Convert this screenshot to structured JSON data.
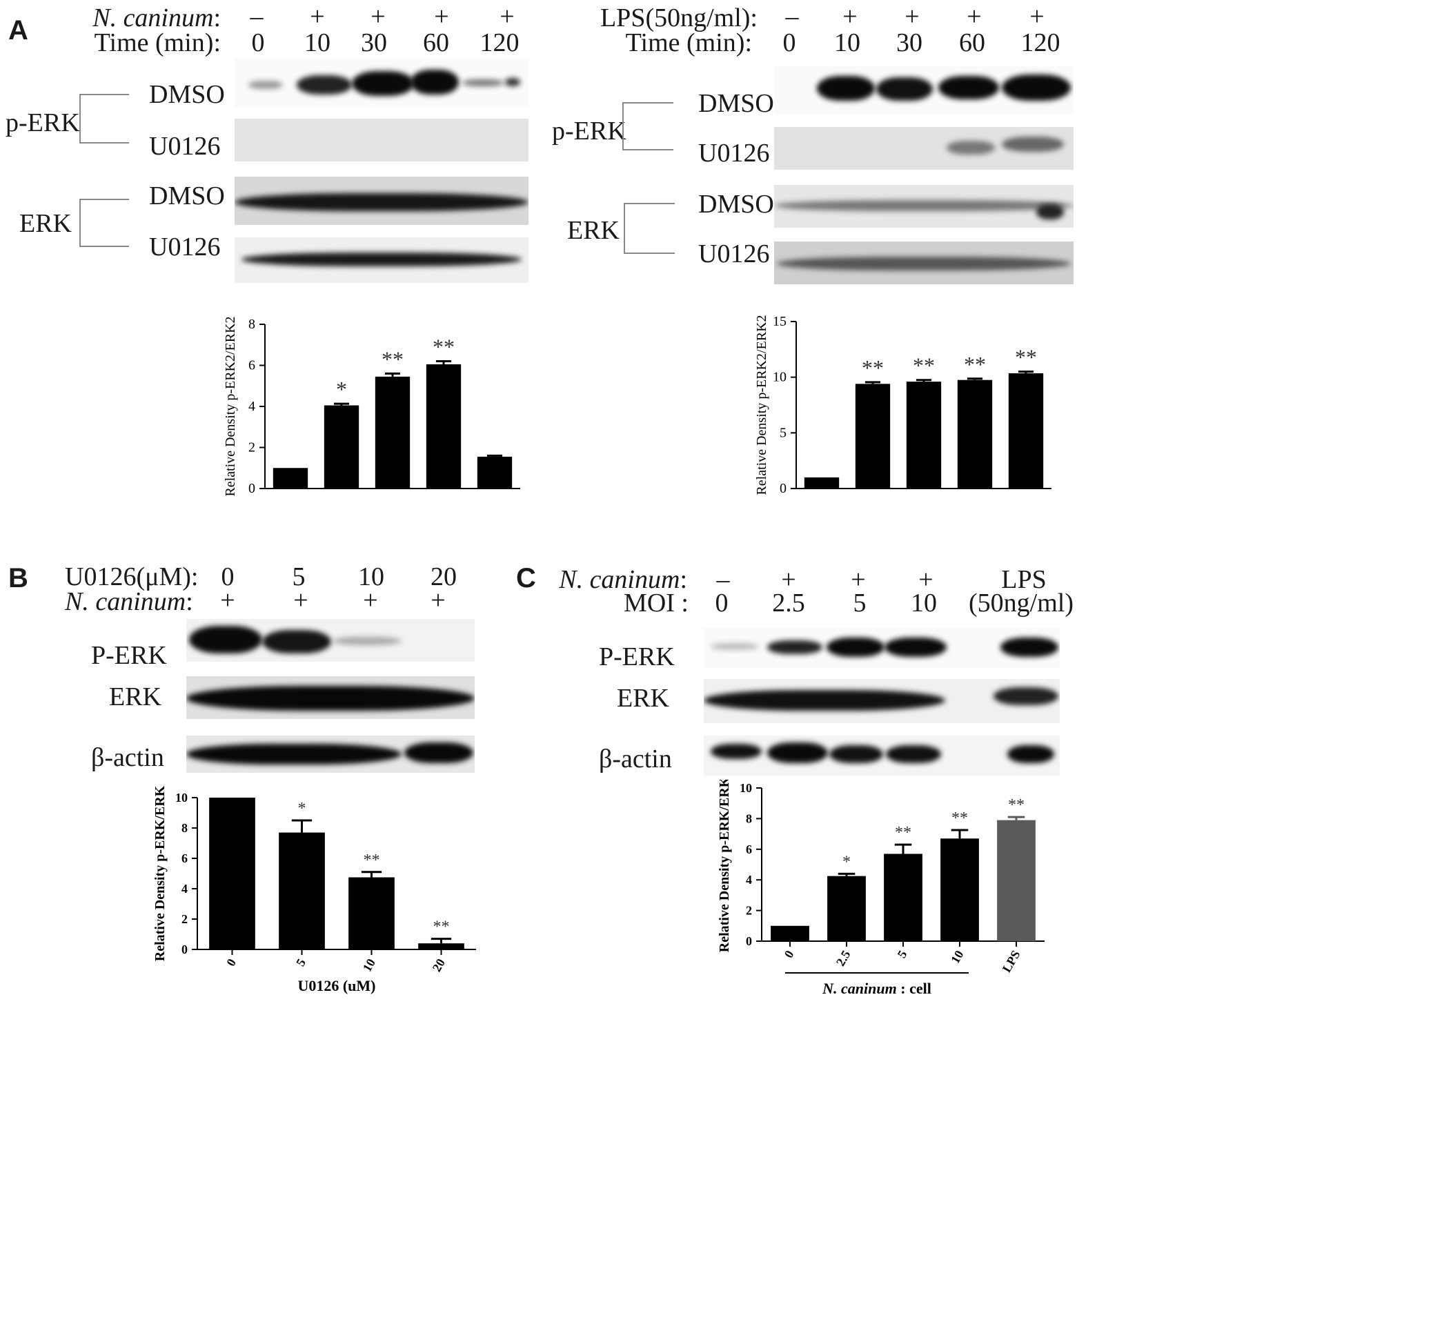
{
  "panels": {
    "A": {
      "letter": "A",
      "left": {
        "treatment_label": "N. caninum",
        "treatment_colon": ":",
        "time_label": "Time (min):",
        "signs": [
          "–",
          "+",
          "+",
          "+",
          "+"
        ],
        "times": [
          "0",
          "10",
          "30",
          "60",
          "120"
        ],
        "group_perk": "p-ERK",
        "group_erk": "ERK",
        "rows": [
          "DMSO",
          "U0126",
          "DMSO",
          "U0126"
        ]
      },
      "right": {
        "treatment_label": "LPS(50ng/ml):",
        "time_label": "Time (min):",
        "signs": [
          "–",
          "+",
          "+",
          "+",
          "+"
        ],
        "times": [
          "0",
          "10",
          "30",
          "60",
          "120"
        ],
        "group_perk": "p-ERK",
        "group_erk": "ERK",
        "rows": [
          "DMSO",
          "U0126",
          "DMSO",
          "U0126"
        ]
      }
    },
    "B": {
      "letter": "B",
      "dose_label": "U0126(μM):",
      "treatment_label": "N. caninum",
      "treatment_colon": ":",
      "doses": [
        "0",
        "5",
        "10",
        "20"
      ],
      "signs": [
        "+",
        "+",
        "+",
        "+"
      ],
      "rows": [
        "P-ERK",
        "ERK",
        "β-actin"
      ]
    },
    "C": {
      "letter": "C",
      "treatment_label": "N. caninum",
      "treatment_colon": ":",
      "moi_label": "MOI :",
      "signs": [
        "–",
        "+",
        "+",
        "+"
      ],
      "mois": [
        "0",
        "2.5",
        "5",
        "10"
      ],
      "lps_top": "LPS",
      "lps_bottom": "(50ng/ml)",
      "rows": [
        "P-ERK",
        "ERK",
        "β-actin"
      ]
    }
  },
  "chart_data": [
    {
      "id": "A-left",
      "type": "bar",
      "categories": [
        "0",
        "10",
        "30",
        "60",
        "120"
      ],
      "values": [
        1.0,
        4.05,
        5.45,
        6.05,
        1.55
      ],
      "errors": [
        0,
        0.08,
        0.15,
        0.15,
        0.05
      ],
      "significance": [
        "",
        "*",
        "**",
        "**",
        ""
      ],
      "ylabel": "Relative Density p-ERK2/ERK2",
      "ylim": [
        0,
        8
      ],
      "yticks": [
        0,
        2,
        4,
        6,
        8
      ],
      "show_xticks": false
    },
    {
      "id": "A-right",
      "type": "bar",
      "categories": [
        "0",
        "10",
        "30",
        "60",
        "120"
      ],
      "values": [
        1.0,
        9.4,
        9.6,
        9.75,
        10.35
      ],
      "errors": [
        0,
        0.15,
        0.15,
        0.12,
        0.15
      ],
      "significance": [
        "",
        "**",
        "**",
        "**",
        "**"
      ],
      "ylabel": "Relative Density p-ERK2/ERK2",
      "ylim": [
        0,
        15
      ],
      "yticks": [
        0,
        5,
        10,
        15
      ],
      "show_xticks": false
    },
    {
      "id": "B",
      "type": "bar",
      "categories": [
        "0",
        "5",
        "10",
        "20"
      ],
      "values": [
        10.0,
        7.7,
        4.75,
        0.4
      ],
      "errors": [
        0,
        0.8,
        0.35,
        0.3
      ],
      "significance": [
        "",
        "*",
        "**",
        "**"
      ],
      "ylabel": "Relative Density p-ERK/ERK",
      "xlabel": "U0126 (uM)",
      "ylim": [
        0,
        10
      ],
      "yticks": [
        0,
        2,
        4,
        6,
        8,
        10
      ],
      "show_xticks": true
    },
    {
      "id": "C",
      "type": "bar",
      "categories": [
        "0",
        "2.5",
        "5",
        "10",
        "LPS"
      ],
      "values": [
        1.0,
        4.25,
        5.7,
        6.7,
        7.9
      ],
      "errors": [
        0,
        0.15,
        0.6,
        0.55,
        0.2
      ],
      "significance": [
        "",
        "*",
        "**",
        "**",
        "**"
      ],
      "colors": [
        "#000000",
        "#000000",
        "#000000",
        "#000000",
        "#5a5a5a"
      ],
      "ylabel": "Relative Density p-ERK/ERK",
      "xlabel_italic": "N. caninum",
      "xlabel_rest": " : cell",
      "ylim": [
        0,
        10
      ],
      "yticks": [
        0,
        2,
        4,
        6,
        8,
        10
      ],
      "show_xticks": true
    }
  ]
}
